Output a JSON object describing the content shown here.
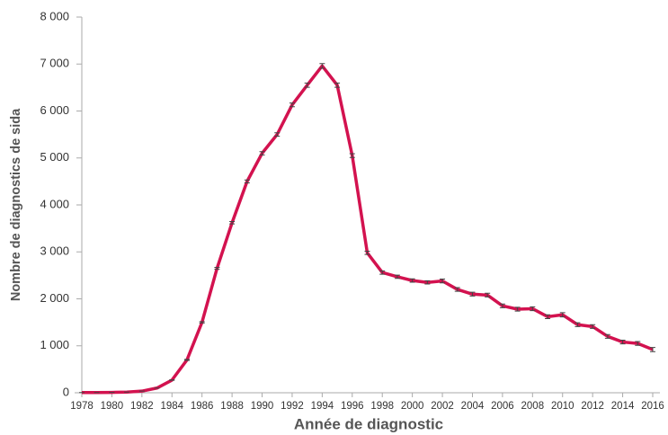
{
  "chart_data": {
    "type": "line",
    "xlabel": "Année de diagnostic",
    "ylabel": "Nombre de diagnostics de sida",
    "x": [
      1978,
      1979,
      1980,
      1981,
      1982,
      1983,
      1984,
      1985,
      1986,
      1987,
      1988,
      1989,
      1990,
      1991,
      1992,
      1993,
      1994,
      1995,
      1996,
      1997,
      1998,
      1999,
      2000,
      2001,
      2002,
      2003,
      2004,
      2005,
      2006,
      2007,
      2008,
      2009,
      2010,
      2011,
      2012,
      2013,
      2014,
      2015,
      2016
    ],
    "series": [
      {
        "color": "#d3124f",
        "values": [
          5,
          5,
          8,
          15,
          35,
          100,
          270,
          700,
          1500,
          2650,
          3620,
          4500,
          5100,
          5500,
          6130,
          6550,
          6960,
          6550,
          5050,
          2980,
          2560,
          2470,
          2390,
          2350,
          2380,
          2200,
          2100,
          2080,
          1850,
          1780,
          1790,
          1620,
          1660,
          1450,
          1410,
          1200,
          1080,
          1050,
          920
        ],
        "errors": [
          0,
          0,
          0,
          0,
          0,
          0,
          5,
          10,
          15,
          20,
          25,
          30,
          35,
          35,
          40,
          45,
          50,
          45,
          40,
          35,
          35,
          35,
          35,
          35,
          40,
          40,
          40,
          40,
          40,
          40,
          40,
          40,
          45,
          40,
          40,
          40,
          40,
          40,
          45
        ]
      }
    ],
    "xlim": [
      1978,
      2016
    ],
    "xticks": [
      1978,
      1980,
      1982,
      1984,
      1986,
      1988,
      1990,
      1992,
      1994,
      1996,
      1998,
      2000,
      2002,
      2004,
      2006,
      2008,
      2010,
      2012,
      2014,
      2016
    ],
    "ylim": [
      0,
      8000
    ],
    "yticks": [
      0,
      {
        "value": 1000,
        "label": "1 000"
      },
      {
        "value": 2000,
        "label": "2 000"
      },
      {
        "value": 3000,
        "label": "3 000"
      },
      {
        "value": 4000,
        "label": "4 000"
      },
      {
        "value": 5000,
        "label": "5 000"
      },
      {
        "value": 6000,
        "label": "6 000"
      },
      {
        "value": 7000,
        "label": "7 000"
      },
      {
        "value": 8000,
        "label": "8 000"
      }
    ],
    "grid": false
  }
}
